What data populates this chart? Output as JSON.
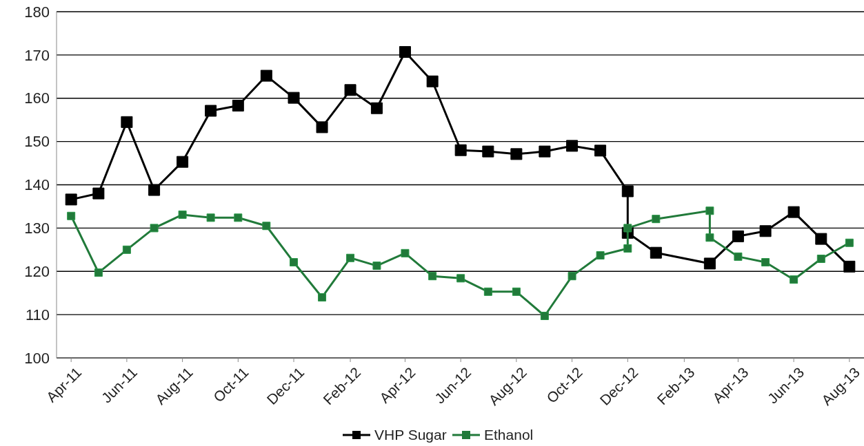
{
  "chart_data": {
    "type": "line",
    "marker": "square",
    "line_style": "solid",
    "grid": "y",
    "legend": "bottom",
    "xlim": [
      "2011-03-16",
      "2013-08-17"
    ],
    "xticks": [
      {
        "value": "2011-04",
        "label": "Apr-11"
      },
      {
        "value": "2011-06",
        "label": "Jun-11"
      },
      {
        "value": "2011-08",
        "label": "Aug-11"
      },
      {
        "value": "2011-10",
        "label": "Oct-11"
      },
      {
        "value": "2011-12",
        "label": "Dec-11"
      },
      {
        "value": "2012-02",
        "label": "Feb-12"
      },
      {
        "value": "2012-04",
        "label": "Apr-12"
      },
      {
        "value": "2012-06",
        "label": "Jun-12"
      },
      {
        "value": "2012-08",
        "label": "Aug-12"
      },
      {
        "value": "2012-10",
        "label": "Oct-12"
      },
      {
        "value": "2012-12",
        "label": "Dec-12"
      },
      {
        "value": "2013-02",
        "label": "Feb-13"
      },
      {
        "value": "2013-04",
        "label": "Apr-13"
      },
      {
        "value": "2013-06",
        "label": "Jun-13"
      },
      {
        "value": "2013-08",
        "label": "Aug-13"
      }
    ],
    "ylim": [
      100,
      180
    ],
    "yticks": [
      100,
      110,
      120,
      130,
      140,
      150,
      160,
      170,
      180
    ],
    "series": [
      {
        "name": "VHP Sugar",
        "color": "#000000",
        "x": [
          "2011-04",
          "2011-05",
          "2011-06",
          "2011-07",
          "2011-08",
          "2011-09",
          "2011-10",
          "2011-11",
          "2011-12",
          "2012-01",
          "2012-02",
          "2012-03",
          "2012-04",
          "2012-05",
          "2012-06",
          "2012-07",
          "2012-08",
          "2012-09",
          "2012-10",
          "2012-11",
          "2012-12",
          "2012-12",
          "2013-01",
          "2013-03",
          "2013-04",
          "2013-05",
          "2013-06",
          "2013-07",
          "2013-08"
        ],
        "values": [
          136.6,
          138.0,
          154.5,
          138.8,
          145.3,
          157.1,
          158.3,
          165.2,
          160.1,
          153.3,
          161.9,
          157.7,
          170.7,
          163.9,
          148.0,
          147.7,
          147.1,
          147.7,
          149.0,
          147.9,
          138.5,
          128.9,
          124.3,
          121.8,
          128.1,
          129.3,
          133.7,
          127.5,
          121.1
        ]
      },
      {
        "name": "Ethanol",
        "color": "#217a3a",
        "x": [
          "2011-04",
          "2011-05",
          "2011-06",
          "2011-07",
          "2011-08",
          "2011-09",
          "2011-10",
          "2011-11",
          "2011-12",
          "2012-01",
          "2012-02",
          "2012-03",
          "2012-04",
          "2012-05",
          "2012-06",
          "2012-07",
          "2012-08",
          "2012-09",
          "2012-10",
          "2012-11",
          "2012-12",
          "2012-12",
          "2013-01",
          "2013-03",
          "2013-03",
          "2013-04",
          "2013-05",
          "2013-06",
          "2013-07",
          "2013-08"
        ],
        "values": [
          132.8,
          119.7,
          125.0,
          130.0,
          133.1,
          132.4,
          132.4,
          130.5,
          122.1,
          114.0,
          123.1,
          121.3,
          124.2,
          118.9,
          118.4,
          115.3,
          115.3,
          109.7,
          118.9,
          123.7,
          125.3,
          130.0,
          132.1,
          134.0,
          127.8,
          123.4,
          122.1,
          118.1,
          122.9,
          126.6
        ]
      }
    ]
  }
}
